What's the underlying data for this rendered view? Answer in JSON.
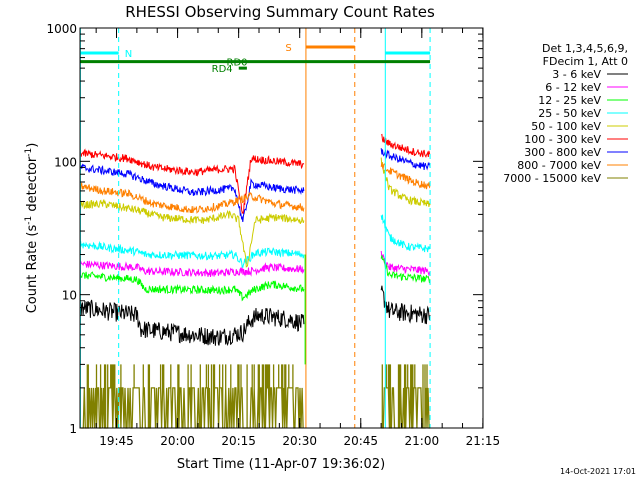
{
  "chart_data": {
    "type": "line",
    "title": "RHESSI Observing Summary Count Rates",
    "xlabel": "Start Time (11-Apr-07 19:36:02)",
    "ylabel_main": "Count Rate (s",
    "ylabel_sup1": "-1",
    "ylabel_mid": " detector",
    "ylabel_sup2": "-1",
    "ylabel_end": ")",
    "y_scale": "log",
    "ylim": [
      1,
      1000
    ],
    "xlim_minutes": [
      0,
      99
    ],
    "x_ticks": [
      {
        "label": "19:45",
        "min": 8.97
      },
      {
        "label": "20:00",
        "min": 23.97
      },
      {
        "label": "20:15",
        "min": 38.97
      },
      {
        "label": "20:30",
        "min": 53.97
      },
      {
        "label": "20:45",
        "min": 68.97
      },
      {
        "label": "21:00",
        "min": 83.97
      },
      {
        "label": "21:15",
        "min": 98.97
      }
    ],
    "y_ticks": [
      {
        "label": "1",
        "value": 1
      },
      {
        "label": "10",
        "value": 10
      },
      {
        "label": "100",
        "value": 100
      },
      {
        "label": "1000",
        "value": 1000
      }
    ],
    "legend": {
      "header1": "Det 1,3,4,5,6,9,",
      "header2": "FDecim 1, Att 0",
      "placement": "right"
    },
    "series": [
      {
        "name": "3 - 6 keV",
        "color": "#000000",
        "segments": [
          [
            [
              0,
              8
            ],
            [
              14,
              7
            ],
            [
              15,
              5.5
            ],
            [
              34,
              4.8
            ],
            [
              40,
              5.2
            ],
            [
              42,
              6.5
            ],
            [
              44,
              7
            ],
            [
              52,
              6.5
            ],
            [
              55,
              6
            ]
          ],
          [
            [
              74,
              10.5
            ],
            [
              76,
              7.5
            ],
            [
              86,
              7
            ]
          ]
        ]
      },
      {
        "name": "6 - 12 keV",
        "color": "#ff00ff",
        "segments": [
          [
            [
              0,
              17
            ],
            [
              14,
              16
            ],
            [
              16,
              15
            ],
            [
              34,
              14.5
            ],
            [
              39,
              15
            ],
            [
              42,
              15
            ],
            [
              46,
              16
            ],
            [
              55,
              15.5
            ]
          ],
          [
            [
              74,
              20
            ],
            [
              76,
              16
            ],
            [
              86,
              15
            ]
          ]
        ]
      },
      {
        "name": "12 - 25 keV",
        "color": "#00ff00",
        "segments": [
          [
            [
              0,
              14
            ],
            [
              14,
              13
            ],
            [
              16,
              11
            ],
            [
              34,
              10.8
            ],
            [
              38,
              11
            ],
            [
              40,
              9.5
            ],
            [
              43,
              11
            ],
            [
              47,
              12
            ],
            [
              55,
              11
            ]
          ],
          [
            [
              74,
              19
            ],
            [
              76,
              14
            ],
            [
              86,
              13
            ]
          ]
        ]
      },
      {
        "name": "25 - 50 keV",
        "color": "#00ffff",
        "segments": [
          [
            [
              0,
              24
            ],
            [
              14,
              21
            ],
            [
              16,
              20
            ],
            [
              34,
              19.5
            ],
            [
              38,
              20
            ],
            [
              40,
              17
            ],
            [
              43,
              20.5
            ],
            [
              47,
              21
            ],
            [
              55,
              20
            ]
          ],
          [
            [
              74,
              40
            ],
            [
              76,
              27
            ],
            [
              80,
              23
            ],
            [
              86,
              22
            ]
          ]
        ]
      },
      {
        "name": "50 - 100 keV",
        "color": "#cccc00",
        "segments": [
          [
            [
              0,
              47
            ],
            [
              6,
              48
            ],
            [
              14,
              43
            ],
            [
              20,
              38
            ],
            [
              30,
              36
            ],
            [
              34,
              38
            ],
            [
              37,
              40
            ],
            [
              39,
              36
            ],
            [
              41,
              16
            ],
            [
              43,
              36
            ],
            [
              48,
              38
            ],
            [
              55,
              36
            ]
          ],
          [
            [
              74,
              100
            ],
            [
              76,
              62
            ],
            [
              80,
              52
            ],
            [
              86,
              47
            ]
          ]
        ]
      },
      {
        "name": "100 - 300 keV",
        "color": "#ff0000",
        "segments": [
          [
            [
              0,
              115
            ],
            [
              6,
              110
            ],
            [
              12,
              105
            ],
            [
              18,
              90
            ],
            [
              28,
              83
            ],
            [
              34,
              87
            ],
            [
              38,
              88
            ],
            [
              40,
              40
            ],
            [
              42,
              105
            ],
            [
              48,
              100
            ],
            [
              55,
              95
            ]
          ],
          [
            [
              74,
              150
            ],
            [
              76,
              135
            ],
            [
              82,
              118
            ],
            [
              86,
              112
            ]
          ]
        ]
      },
      {
        "name": "300 - 800 keV",
        "color": "#0000ff",
        "segments": [
          [
            [
              0,
              90
            ],
            [
              6,
              85
            ],
            [
              12,
              80
            ],
            [
              18,
              68
            ],
            [
              28,
              58
            ],
            [
              34,
              61
            ],
            [
              38,
              63
            ],
            [
              40,
              35
            ],
            [
              42,
              68
            ],
            [
              48,
              63
            ],
            [
              55,
              60
            ]
          ],
          [
            [
              74,
              120
            ],
            [
              76,
              110
            ],
            [
              82,
              95
            ],
            [
              86,
              90
            ]
          ]
        ]
      },
      {
        "name": "800 - 7000 keV",
        "color": "#ff8000",
        "segments": [
          [
            [
              0,
              65
            ],
            [
              6,
              60
            ],
            [
              12,
              57
            ],
            [
              18,
              48
            ],
            [
              28,
              43
            ],
            [
              34,
              46
            ],
            [
              38,
              50
            ],
            [
              42,
              55
            ],
            [
              48,
              48
            ],
            [
              55,
              45
            ]
          ],
          [
            [
              74,
              95
            ],
            [
              76,
              85
            ],
            [
              82,
              70
            ],
            [
              86,
              65
            ]
          ]
        ]
      },
      {
        "name": "7000 - 15000 keV",
        "color": "#808000",
        "segments": []
      }
    ],
    "flag_bars": [
      {
        "label": "N",
        "color": "#00ffff",
        "segments": [
          [
            0,
            9.5
          ],
          [
            75,
            86
          ]
        ],
        "label_at": 10.5,
        "label_side": "right"
      },
      {
        "label": "S",
        "color": "#ff8000",
        "segments": [
          [
            55.5,
            67.5
          ]
        ],
        "label_at": 52.5,
        "label_side": "left"
      },
      {
        "label": "RD0",
        "color": "#008000",
        "segments": [
          [
            0,
            86
          ]
        ],
        "label_at": 35.5,
        "label_side": "right"
      },
      {
        "label": "RD4",
        "color": "#008000",
        "segments": [
          [
            39,
            41
          ]
        ],
        "label_at": 38,
        "label_side": "left"
      }
    ],
    "grid": false
  },
  "footer": {
    "timestamp": "14-Oct-2021 17:01"
  }
}
